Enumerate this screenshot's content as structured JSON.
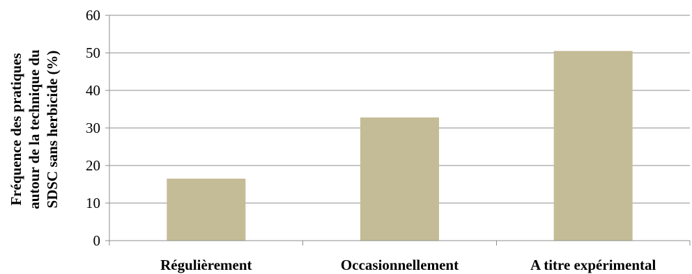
{
  "chart_data": {
    "type": "bar",
    "categories": [
      "Régulièrement",
      "Occasionnellement",
      "A titre expérimental"
    ],
    "values": [
      16.5,
      32.8,
      50.5
    ],
    "ylabel_lines": [
      "Fréquence des pratiques",
      "autour de la technique du",
      "SDSC sans herbicide (%)"
    ],
    "ylim": [
      0,
      60
    ],
    "yticks": [
      0,
      10,
      20,
      30,
      40,
      50,
      60
    ],
    "grid": true,
    "bar_color": "#c4bc96"
  }
}
